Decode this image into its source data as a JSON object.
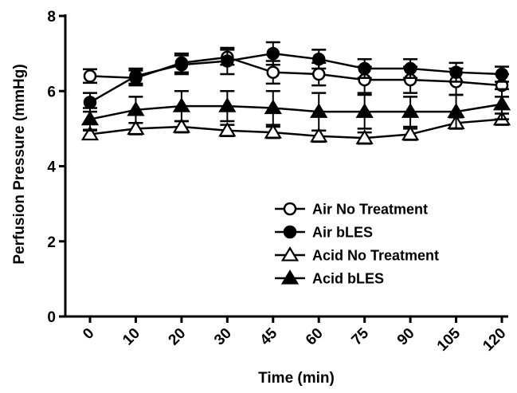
{
  "chart_data": {
    "type": "line",
    "title": "",
    "xlabel": "Time (min)",
    "ylabel": "Perfusion Pressure (mmHg)",
    "ylim": [
      0,
      8
    ],
    "yticks": [
      "0",
      "2",
      "4",
      "6",
      "8"
    ],
    "categories": [
      "0",
      "10",
      "20",
      "30",
      "45",
      "60",
      "75",
      "90",
      "105",
      "120"
    ],
    "grid": false,
    "legend_position": "center-right",
    "series": [
      {
        "name": "Air No Treatment",
        "marker": "circle-open",
        "values": [
          6.4,
          6.35,
          6.75,
          6.9,
          6.5,
          6.45,
          6.3,
          6.3,
          6.25,
          6.15
        ],
        "errors": [
          0.18,
          0.2,
          0.25,
          0.2,
          0.3,
          0.3,
          0.35,
          0.35,
          0.35,
          0.3
        ]
      },
      {
        "name": "Air bLES",
        "marker": "circle-filled",
        "values": [
          5.7,
          6.4,
          6.7,
          6.8,
          7.0,
          6.85,
          6.6,
          6.6,
          6.5,
          6.45
        ],
        "errors": [
          0.25,
          0.2,
          0.25,
          0.35,
          0.3,
          0.25,
          0.25,
          0.25,
          0.25,
          0.2
        ]
      },
      {
        "name": "Acid No Treatment",
        "marker": "triangle-open",
        "values": [
          4.85,
          5.0,
          5.05,
          4.95,
          4.9,
          4.8,
          4.75,
          4.85,
          5.15,
          5.25
        ],
        "errors": [
          0.12,
          0.15,
          0.15,
          0.15,
          0.15,
          0.15,
          0.15,
          0.15,
          0.15,
          0.15
        ]
      },
      {
        "name": "Acid bLES",
        "marker": "triangle-filled",
        "values": [
          5.25,
          5.5,
          5.6,
          5.6,
          5.55,
          5.45,
          5.45,
          5.45,
          5.45,
          5.65
        ],
        "errors": [
          0.3,
          0.35,
          0.4,
          0.4,
          0.45,
          0.5,
          0.45,
          0.4,
          0.45,
          0.4
        ]
      }
    ]
  }
}
